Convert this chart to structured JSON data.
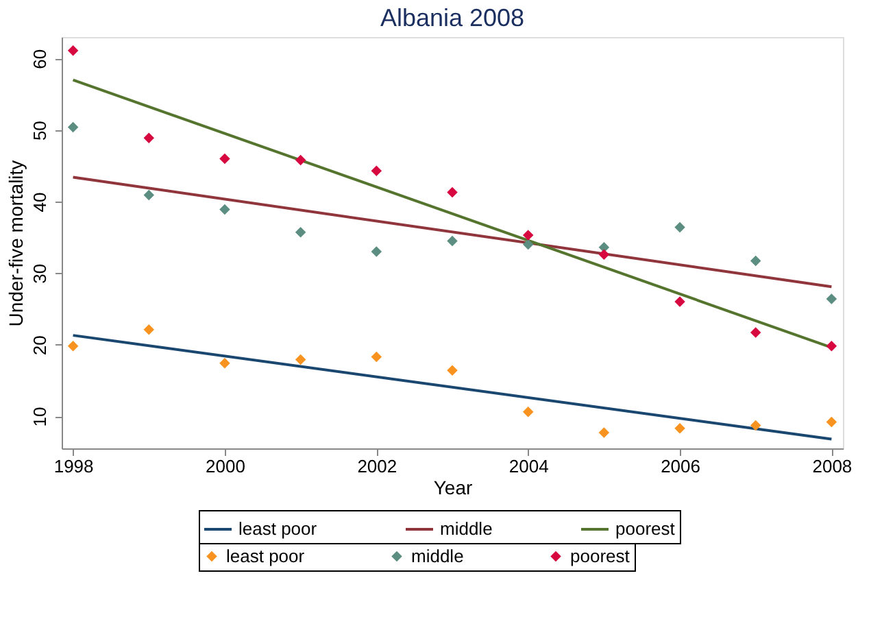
{
  "chart_data": {
    "type": "scatter",
    "title": "Albania 2008",
    "xlabel": "Year",
    "ylabel": "Under-five mortality",
    "xlim": [
      1997.85,
      2008.15
    ],
    "ylim": [
      5.5,
      63
    ],
    "xticks": [
      1998,
      2000,
      2002,
      2004,
      2006,
      2008
    ],
    "yticks": [
      10,
      20,
      30,
      40,
      50,
      60
    ],
    "grid": false,
    "legend": "bottom",
    "marker": "diamond",
    "series": [
      {
        "name": "least poor",
        "type": "line",
        "marker": "none",
        "color": "#1a476f",
        "x": [
          1998,
          2008
        ],
        "values": [
          21.3,
          6.8
        ]
      },
      {
        "name": "middle",
        "type": "line",
        "marker": "none",
        "color": "#90353b",
        "x": [
          1998,
          2008
        ],
        "values": [
          43.4,
          28.1
        ]
      },
      {
        "name": "poorest",
        "type": "line",
        "marker": "none",
        "color": "#55752f",
        "x": [
          1998,
          2008
        ],
        "values": [
          57.0,
          19.6
        ]
      },
      {
        "name": "least poor",
        "color": "#f7931e",
        "x": [
          1998,
          1999,
          2000,
          2001,
          2002,
          2003,
          2004,
          2005,
          2006,
          2007,
          2008
        ],
        "values": [
          19.8,
          22.1,
          17.4,
          17.9,
          18.3,
          16.4,
          10.6,
          7.7,
          8.3,
          8.7,
          9.2
        ]
      },
      {
        "name": "middle",
        "color": "#5b8e80",
        "x": [
          1998,
          1999,
          2000,
          2001,
          2002,
          2003,
          2004,
          2005,
          2006,
          2007,
          2008
        ],
        "values": [
          50.4,
          40.9,
          38.9,
          35.7,
          33.0,
          34.5,
          34.0,
          33.6,
          36.4,
          31.7,
          26.4
        ]
      },
      {
        "name": "poorest",
        "color": "#d7083f",
        "x": [
          1998,
          1999,
          2000,
          2001,
          2002,
          2003,
          2004,
          2005,
          2006,
          2007,
          2008
        ],
        "values": [
          61.1,
          48.9,
          46.0,
          45.8,
          44.3,
          41.3,
          35.3,
          32.6,
          26.0,
          21.7,
          19.8
        ]
      }
    ]
  }
}
